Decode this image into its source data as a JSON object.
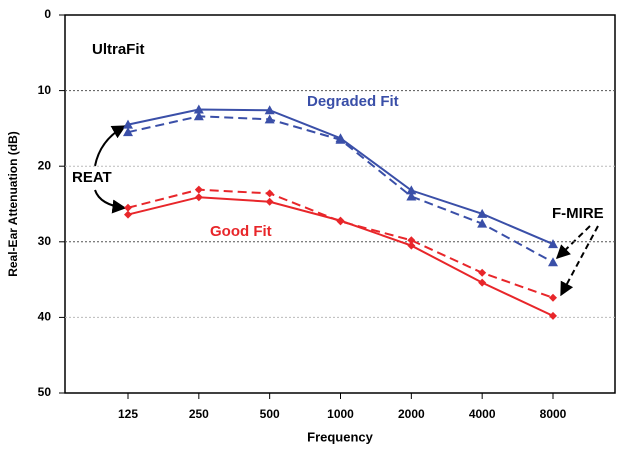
{
  "chart_data": {
    "type": "line",
    "ylabel": "Real-Ear Attenuation (dB)",
    "xlabel": "Frequency",
    "annotations": [
      "UltraFit",
      "Degraded Fit",
      "Good Fit",
      "REAT",
      "F-MIRE"
    ],
    "categories": [
      "125",
      "250",
      "500",
      "1000",
      "2000",
      "4000",
      "8000"
    ],
    "ylim": [
      0,
      50
    ],
    "yticks": [
      0,
      10,
      20,
      30,
      40,
      50
    ],
    "y_inverted": true,
    "grid": true,
    "series": [
      {
        "color": "#3a4fa8",
        "style": "solid",
        "marker": "triangle",
        "values": [
          14.5,
          12.5,
          12.6,
          16.3,
          23.2,
          26.3,
          30.3
        ]
      },
      {
        "color": "#3a4fa8",
        "style": "dashed",
        "marker": "triangle",
        "values": [
          15.5,
          13.4,
          13.8,
          16.5,
          24.0,
          27.6,
          32.7
        ]
      },
      {
        "color": "#e8262a",
        "style": "solid",
        "marker": "diamond",
        "values": [
          26.4,
          24.1,
          24.7,
          27.2,
          30.5,
          35.4,
          39.8
        ]
      },
      {
        "color": "#e8262a",
        "style": "dashed",
        "marker": "diamond",
        "values": [
          25.5,
          23.1,
          23.6,
          27.3,
          29.8,
          34.1,
          37.4
        ]
      }
    ]
  }
}
